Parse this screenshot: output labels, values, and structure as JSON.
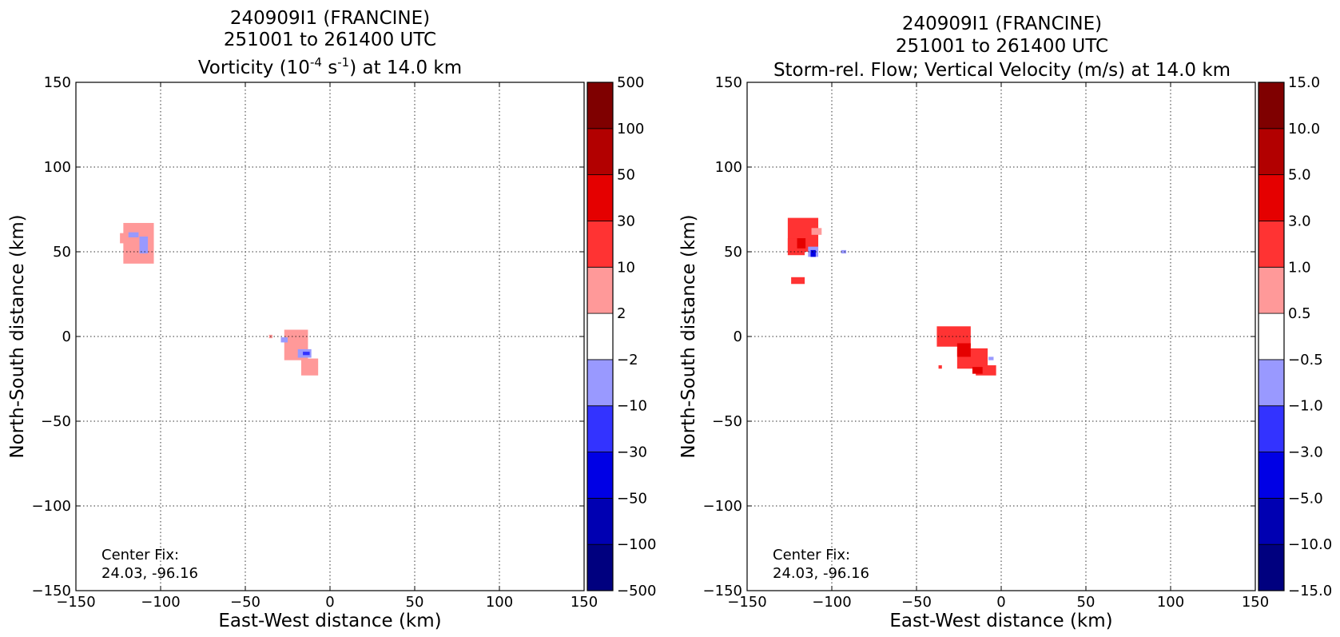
{
  "chart_data": [
    {
      "type": "heatmap",
      "title_lines": [
        "240909I1 (FRANCINE)",
        "251001 to 261400 UTC"
      ],
      "title_prefix": "Vorticity (10",
      "title_sup1": "-4",
      "title_mid": " s",
      "title_sup2": "-1",
      "title_suffix": ") at 14.0 km",
      "xlabel": "East-West distance (km)",
      "ylabel": "North-South distance (km)",
      "xlim": [
        -150,
        150
      ],
      "ylim": [
        -150,
        150
      ],
      "xticks": [
        -150,
        -100,
        -50,
        0,
        50,
        100,
        150
      ],
      "yticks": [
        -150,
        -100,
        -50,
        0,
        50,
        100,
        150
      ],
      "xtick_labels": [
        "−150",
        "−100",
        "−50",
        "0",
        "50",
        "100",
        "150"
      ],
      "ytick_labels": [
        "−150",
        "−100",
        "−50",
        "0",
        "50",
        "100",
        "150"
      ],
      "grid": true,
      "annotation_lines": [
        "Center Fix:",
        "24.03, -96.16"
      ],
      "colorbar": {
        "levels": [
          -500,
          -100,
          -50,
          -30,
          -10,
          -2,
          2,
          10,
          30,
          50,
          100,
          500
        ],
        "labels": [
          "−500",
          "−100",
          "−50",
          "−30",
          "−10",
          "−2",
          "2",
          "10",
          "30",
          "50",
          "100",
          "500"
        ],
        "colors": [
          "#00007f",
          "#0000b2",
          "#0000e5",
          "#3333ff",
          "#9999ff",
          "#ffffff",
          "#ff9999",
          "#ff3333",
          "#e50000",
          "#b20000",
          "#7f0000"
        ]
      },
      "features": [
        {
          "x": -113,
          "y": 55,
          "w": 18,
          "h": 24,
          "color": "#ff9999"
        },
        {
          "x": -121,
          "y": 58,
          "w": 6,
          "h": 6,
          "color": "#ff9999"
        },
        {
          "x": -116,
          "y": 60,
          "w": 6,
          "h": 3,
          "color": "#9999ff"
        },
        {
          "x": -110,
          "y": 54,
          "w": 5,
          "h": 10,
          "color": "#9999ff"
        },
        {
          "x": -20,
          "y": -5,
          "w": 14,
          "h": 18,
          "color": "#ff9999"
        },
        {
          "x": -12,
          "y": -18,
          "w": 10,
          "h": 10,
          "color": "#ff9999"
        },
        {
          "x": -15,
          "y": -10,
          "w": 8,
          "h": 5,
          "color": "#9999ff"
        },
        {
          "x": -27,
          "y": -2,
          "w": 4,
          "h": 3,
          "color": "#9999ff"
        },
        {
          "x": -14,
          "y": -10,
          "w": 4,
          "h": 2,
          "color": "#3333ff"
        },
        {
          "x": -35,
          "y": 0,
          "w": 2,
          "h": 2,
          "color": "#ff9999"
        }
      ]
    },
    {
      "type": "heatmap",
      "title_lines": [
        "240909I1 (FRANCINE)",
        "251001 to 261400 UTC",
        "Storm-rel. Flow; Vertical Velocity (m/s) at 14.0 km"
      ],
      "xlabel": "East-West distance (km)",
      "ylabel": "North-South distance (km)",
      "xlim": [
        -150,
        150
      ],
      "ylim": [
        -150,
        150
      ],
      "xticks": [
        -150,
        -100,
        -50,
        0,
        50,
        100,
        150
      ],
      "yticks": [
        -150,
        -100,
        -50,
        0,
        50,
        100,
        150
      ],
      "xtick_labels": [
        "−150",
        "−100",
        "−50",
        "0",
        "50",
        "100",
        "150"
      ],
      "ytick_labels": [
        "−150",
        "−100",
        "−50",
        "0",
        "50",
        "100",
        "150"
      ],
      "grid": true,
      "annotation_lines": [
        "Center Fix:",
        "24.03, -96.16"
      ],
      "colorbar": {
        "levels": [
          -15.0,
          -10.0,
          -5.0,
          -3.0,
          -1.0,
          -0.5,
          0.5,
          1.0,
          3.0,
          5.0,
          10.0,
          15.0
        ],
        "labels": [
          "−15.0",
          "−10.0",
          "−5.0",
          "−3.0",
          "−1.0",
          "−0.5",
          "0.5",
          "1.0",
          "3.0",
          "5.0",
          "10.0",
          "15.0"
        ],
        "colors": [
          "#00007f",
          "#0000b2",
          "#0000e5",
          "#3333ff",
          "#9999ff",
          "#ffffff",
          "#ff9999",
          "#ff3333",
          "#e50000",
          "#b20000",
          "#7f0000"
        ]
      },
      "features": [
        {
          "x": -117,
          "y": 60,
          "w": 18,
          "h": 20,
          "color": "#ff3333"
        },
        {
          "x": -121,
          "y": 53,
          "w": 10,
          "h": 10,
          "color": "#ff3333"
        },
        {
          "x": -115,
          "y": 65,
          "w": 10,
          "h": 8,
          "color": "#ff3333"
        },
        {
          "x": -120,
          "y": 33,
          "w": 8,
          "h": 4,
          "color": "#ff3333"
        },
        {
          "x": -118,
          "y": 55,
          "w": 5,
          "h": 6,
          "color": "#e50000"
        },
        {
          "x": -109,
          "y": 62,
          "w": 6,
          "h": 4,
          "color": "#ff9999"
        },
        {
          "x": -111,
          "y": 50,
          "w": 6,
          "h": 6,
          "color": "#9999ff"
        },
        {
          "x": -111,
          "y": 49,
          "w": 3,
          "h": 4,
          "color": "#0000e5"
        },
        {
          "x": -93,
          "y": 50,
          "w": 3,
          "h": 2,
          "color": "#9999ff"
        },
        {
          "x": -28,
          "y": 0,
          "w": 20,
          "h": 12,
          "color": "#ff3333"
        },
        {
          "x": -17,
          "y": -13,
          "w": 18,
          "h": 12,
          "color": "#ff3333"
        },
        {
          "x": -9,
          "y": -20,
          "w": 12,
          "h": 6,
          "color": "#ff3333"
        },
        {
          "x": -22,
          "y": -8,
          "w": 8,
          "h": 8,
          "color": "#e50000"
        },
        {
          "x": -14,
          "y": -20,
          "w": 6,
          "h": 4,
          "color": "#e50000"
        },
        {
          "x": -36,
          "y": -18,
          "w": 2,
          "h": 2,
          "color": "#ff3333"
        },
        {
          "x": -6,
          "y": -13,
          "w": 3,
          "h": 2,
          "color": "#9999ff"
        }
      ]
    }
  ]
}
